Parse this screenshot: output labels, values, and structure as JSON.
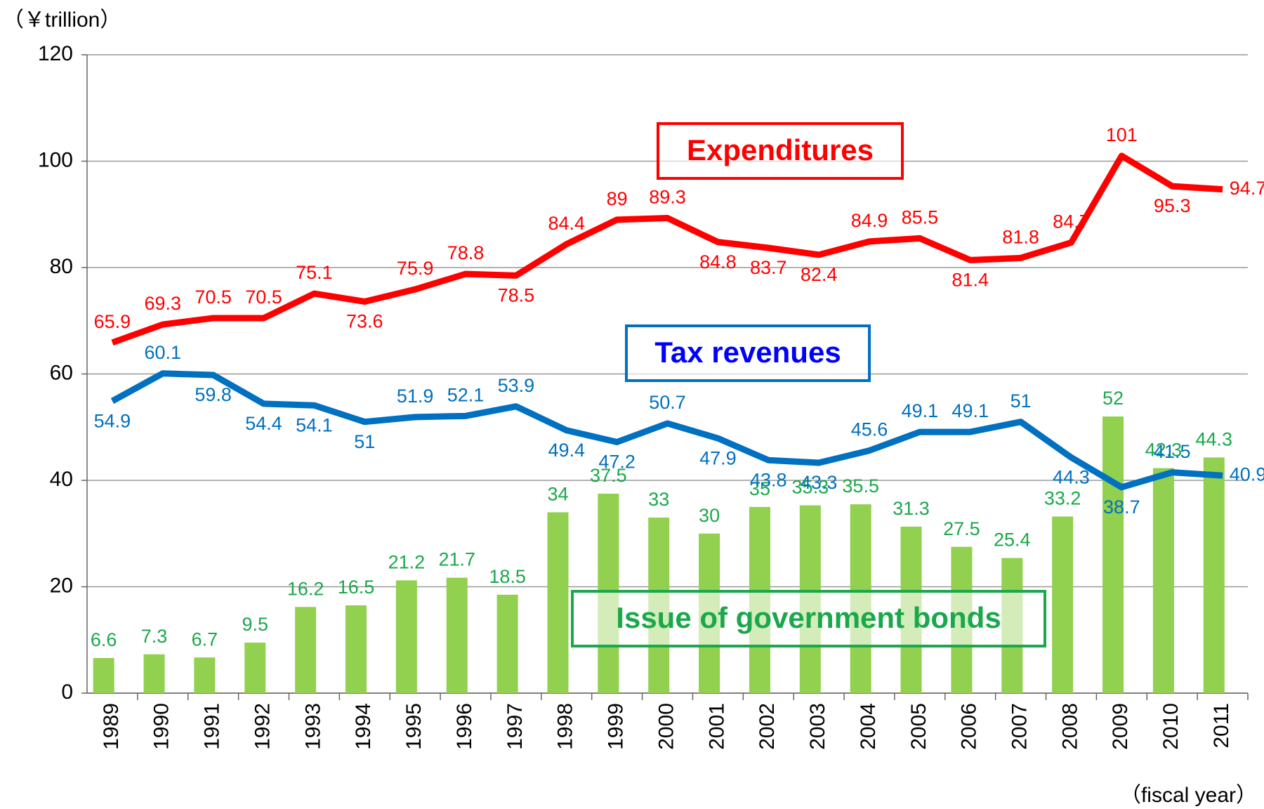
{
  "chart_data": {
    "type": "bar_line",
    "y_axis_label": "（￥trillion）",
    "x_axis_label": "（fiscal year）",
    "categories": [
      "1989",
      "1990",
      "1991",
      "1992",
      "1993",
      "1994",
      "1995",
      "1996",
      "1997",
      "1998",
      "1999",
      "2000",
      "2001",
      "2002",
      "2003",
      "2004",
      "2005",
      "2006",
      "2007",
      "2008",
      "2009",
      "2010",
      "2011"
    ],
    "series": [
      {
        "name": "Expenditures",
        "type": "line",
        "color": "#ff0000",
        "values": [
          65.9,
          69.3,
          70.5,
          70.5,
          75.1,
          73.6,
          75.9,
          78.8,
          78.5,
          84.4,
          89,
          89.3,
          84.8,
          83.7,
          82.4,
          84.9,
          85.5,
          81.4,
          81.8,
          84.7,
          101,
          95.3,
          94.7
        ]
      },
      {
        "name": "Tax revenues",
        "type": "line",
        "color": "#0070c0",
        "values": [
          54.9,
          60.1,
          59.8,
          54.4,
          54.1,
          51,
          51.9,
          52.1,
          53.9,
          49.4,
          47.2,
          50.7,
          47.9,
          43.8,
          43.3,
          45.6,
          49.1,
          49.1,
          51,
          44.3,
          38.7,
          41.5,
          40.9
        ]
      },
      {
        "name": "Issue of government bonds",
        "type": "bar",
        "color": "#92d050",
        "values": [
          6.6,
          7.3,
          6.7,
          9.5,
          16.2,
          16.5,
          21.2,
          21.7,
          18.5,
          34,
          37.5,
          33,
          30,
          35,
          35.3,
          35.5,
          31.3,
          27.5,
          25.4,
          33.2,
          52,
          42.3,
          44.3
        ]
      }
    ],
    "ylim": [
      0,
      120
    ],
    "yticks": [
      0,
      20,
      40,
      60,
      80,
      100,
      120
    ],
    "grid": true
  }
}
